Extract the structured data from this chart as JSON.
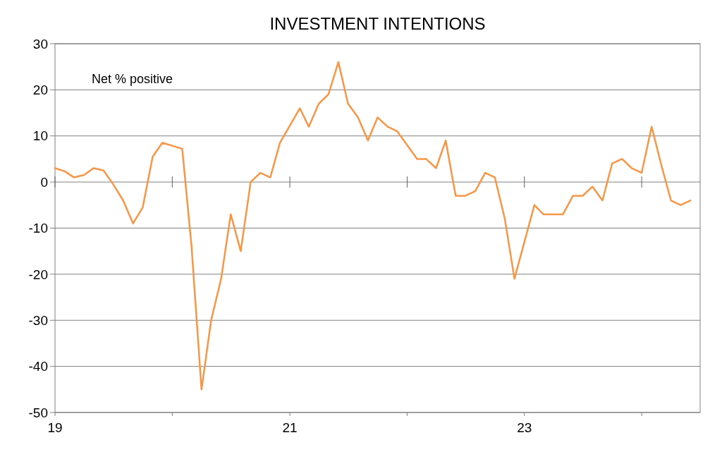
{
  "chart_data": {
    "type": "line",
    "title": "INVESTMENT INTENTIONS",
    "annotations": [
      "Net % positive"
    ],
    "x": [
      "2019-01",
      "2019-02",
      "2019-03",
      "2019-04",
      "2019-05",
      "2019-06",
      "2019-07",
      "2019-08",
      "2019-09",
      "2019-10",
      "2019-11",
      "2019-12",
      "2020-02",
      "2020-03",
      "2020-04",
      "2020-05",
      "2020-06",
      "2020-07",
      "2020-08",
      "2020-09",
      "2020-10",
      "2020-11",
      "2020-12",
      "2021-02",
      "2021-03",
      "2021-04",
      "2021-05",
      "2021-06",
      "2021-07",
      "2021-08",
      "2021-09",
      "2021-10",
      "2021-11",
      "2021-12",
      "2022-02",
      "2022-03",
      "2022-04",
      "2022-05",
      "2022-06",
      "2022-07",
      "2022-08",
      "2022-09",
      "2022-10",
      "2022-11",
      "2022-12",
      "2023-02",
      "2023-03",
      "2023-04",
      "2023-05",
      "2023-06",
      "2023-07",
      "2023-08",
      "2023-09",
      "2023-10",
      "2023-11",
      "2023-12",
      "2024-01",
      "2024-02",
      "2024-03",
      "2024-04",
      "2024-05",
      "2024-06"
    ],
    "series": [
      {
        "color": "#f79646",
        "values": [
          3,
          2.3,
          1,
          1.5,
          3,
          2.5,
          -0.5,
          -4,
          -9,
          -5.5,
          5.5,
          8.5,
          7.2,
          -14,
          -45,
          -30,
          -21,
          -7,
          -15,
          0,
          2,
          1,
          8.5,
          16,
          12,
          17,
          19,
          26,
          17,
          14,
          9,
          14,
          12,
          11,
          5,
          5,
          3,
          9,
          -3,
          -3,
          -2,
          2,
          1,
          -8,
          -21,
          -5,
          -7,
          -7,
          -7,
          -3,
          -3,
          -1,
          -4,
          4,
          5,
          3,
          2,
          12,
          4,
          -4,
          -5,
          -4
        ]
      }
    ],
    "xlim": [
      "2019-01",
      "2024-07"
    ],
    "xticks": [
      {
        "value": "2019-01",
        "label": "19"
      },
      {
        "value": "2020-01",
        "label": null
      },
      {
        "value": "2021-01",
        "label": "21"
      },
      {
        "value": "2022-01",
        "label": null
      },
      {
        "value": "2023-01",
        "label": "23"
      },
      {
        "value": "2024-01",
        "label": null
      }
    ],
    "ylim": [
      -50,
      30
    ],
    "yticks": [
      -50,
      -40,
      -30,
      -20,
      -10,
      0,
      10,
      20,
      30
    ],
    "grid": "y",
    "marker": "none",
    "line_style": "solid"
  }
}
